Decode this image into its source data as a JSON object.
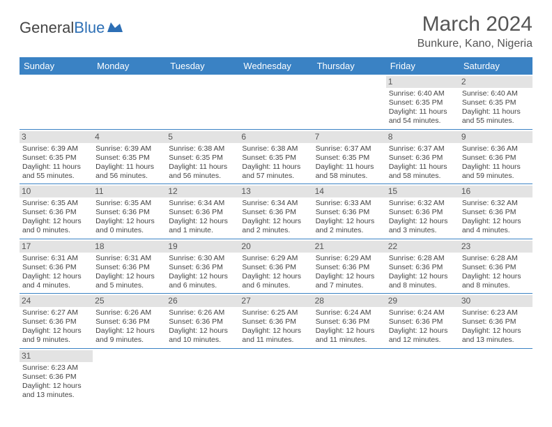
{
  "logo": {
    "text1": "General",
    "text2": "Blue"
  },
  "title": "March 2024",
  "subtitle": "Bunkure, Kano, Nigeria",
  "colors": {
    "header_bg": "#3a82c4",
    "daynum_bg": "#e3e3e3",
    "title_color": "#555555",
    "text_color": "#444444",
    "logo_blue": "#2d6fb5"
  },
  "dayNames": [
    "Sunday",
    "Monday",
    "Tuesday",
    "Wednesday",
    "Thursday",
    "Friday",
    "Saturday"
  ],
  "weeks": [
    [
      {
        "empty": true
      },
      {
        "empty": true
      },
      {
        "empty": true
      },
      {
        "empty": true
      },
      {
        "empty": true
      },
      {
        "day": "1",
        "sunrise": "Sunrise: 6:40 AM",
        "sunset": "Sunset: 6:35 PM",
        "daylight1": "Daylight: 11 hours",
        "daylight2": "and 54 minutes."
      },
      {
        "day": "2",
        "sunrise": "Sunrise: 6:40 AM",
        "sunset": "Sunset: 6:35 PM",
        "daylight1": "Daylight: 11 hours",
        "daylight2": "and 55 minutes."
      }
    ],
    [
      {
        "day": "3",
        "sunrise": "Sunrise: 6:39 AM",
        "sunset": "Sunset: 6:35 PM",
        "daylight1": "Daylight: 11 hours",
        "daylight2": "and 55 minutes."
      },
      {
        "day": "4",
        "sunrise": "Sunrise: 6:39 AM",
        "sunset": "Sunset: 6:35 PM",
        "daylight1": "Daylight: 11 hours",
        "daylight2": "and 56 minutes."
      },
      {
        "day": "5",
        "sunrise": "Sunrise: 6:38 AM",
        "sunset": "Sunset: 6:35 PM",
        "daylight1": "Daylight: 11 hours",
        "daylight2": "and 56 minutes."
      },
      {
        "day": "6",
        "sunrise": "Sunrise: 6:38 AM",
        "sunset": "Sunset: 6:35 PM",
        "daylight1": "Daylight: 11 hours",
        "daylight2": "and 57 minutes."
      },
      {
        "day": "7",
        "sunrise": "Sunrise: 6:37 AM",
        "sunset": "Sunset: 6:35 PM",
        "daylight1": "Daylight: 11 hours",
        "daylight2": "and 58 minutes."
      },
      {
        "day": "8",
        "sunrise": "Sunrise: 6:37 AM",
        "sunset": "Sunset: 6:36 PM",
        "daylight1": "Daylight: 11 hours",
        "daylight2": "and 58 minutes."
      },
      {
        "day": "9",
        "sunrise": "Sunrise: 6:36 AM",
        "sunset": "Sunset: 6:36 PM",
        "daylight1": "Daylight: 11 hours",
        "daylight2": "and 59 minutes."
      }
    ],
    [
      {
        "day": "10",
        "sunrise": "Sunrise: 6:35 AM",
        "sunset": "Sunset: 6:36 PM",
        "daylight1": "Daylight: 12 hours",
        "daylight2": "and 0 minutes."
      },
      {
        "day": "11",
        "sunrise": "Sunrise: 6:35 AM",
        "sunset": "Sunset: 6:36 PM",
        "daylight1": "Daylight: 12 hours",
        "daylight2": "and 0 minutes."
      },
      {
        "day": "12",
        "sunrise": "Sunrise: 6:34 AM",
        "sunset": "Sunset: 6:36 PM",
        "daylight1": "Daylight: 12 hours",
        "daylight2": "and 1 minute."
      },
      {
        "day": "13",
        "sunrise": "Sunrise: 6:34 AM",
        "sunset": "Sunset: 6:36 PM",
        "daylight1": "Daylight: 12 hours",
        "daylight2": "and 2 minutes."
      },
      {
        "day": "14",
        "sunrise": "Sunrise: 6:33 AM",
        "sunset": "Sunset: 6:36 PM",
        "daylight1": "Daylight: 12 hours",
        "daylight2": "and 2 minutes."
      },
      {
        "day": "15",
        "sunrise": "Sunrise: 6:32 AM",
        "sunset": "Sunset: 6:36 PM",
        "daylight1": "Daylight: 12 hours",
        "daylight2": "and 3 minutes."
      },
      {
        "day": "16",
        "sunrise": "Sunrise: 6:32 AM",
        "sunset": "Sunset: 6:36 PM",
        "daylight1": "Daylight: 12 hours",
        "daylight2": "and 4 minutes."
      }
    ],
    [
      {
        "day": "17",
        "sunrise": "Sunrise: 6:31 AM",
        "sunset": "Sunset: 6:36 PM",
        "daylight1": "Daylight: 12 hours",
        "daylight2": "and 4 minutes."
      },
      {
        "day": "18",
        "sunrise": "Sunrise: 6:31 AM",
        "sunset": "Sunset: 6:36 PM",
        "daylight1": "Daylight: 12 hours",
        "daylight2": "and 5 minutes."
      },
      {
        "day": "19",
        "sunrise": "Sunrise: 6:30 AM",
        "sunset": "Sunset: 6:36 PM",
        "daylight1": "Daylight: 12 hours",
        "daylight2": "and 6 minutes."
      },
      {
        "day": "20",
        "sunrise": "Sunrise: 6:29 AM",
        "sunset": "Sunset: 6:36 PM",
        "daylight1": "Daylight: 12 hours",
        "daylight2": "and 6 minutes."
      },
      {
        "day": "21",
        "sunrise": "Sunrise: 6:29 AM",
        "sunset": "Sunset: 6:36 PM",
        "daylight1": "Daylight: 12 hours",
        "daylight2": "and 7 minutes."
      },
      {
        "day": "22",
        "sunrise": "Sunrise: 6:28 AM",
        "sunset": "Sunset: 6:36 PM",
        "daylight1": "Daylight: 12 hours",
        "daylight2": "and 8 minutes."
      },
      {
        "day": "23",
        "sunrise": "Sunrise: 6:28 AM",
        "sunset": "Sunset: 6:36 PM",
        "daylight1": "Daylight: 12 hours",
        "daylight2": "and 8 minutes."
      }
    ],
    [
      {
        "day": "24",
        "sunrise": "Sunrise: 6:27 AM",
        "sunset": "Sunset: 6:36 PM",
        "daylight1": "Daylight: 12 hours",
        "daylight2": "and 9 minutes."
      },
      {
        "day": "25",
        "sunrise": "Sunrise: 6:26 AM",
        "sunset": "Sunset: 6:36 PM",
        "daylight1": "Daylight: 12 hours",
        "daylight2": "and 9 minutes."
      },
      {
        "day": "26",
        "sunrise": "Sunrise: 6:26 AM",
        "sunset": "Sunset: 6:36 PM",
        "daylight1": "Daylight: 12 hours",
        "daylight2": "and 10 minutes."
      },
      {
        "day": "27",
        "sunrise": "Sunrise: 6:25 AM",
        "sunset": "Sunset: 6:36 PM",
        "daylight1": "Daylight: 12 hours",
        "daylight2": "and 11 minutes."
      },
      {
        "day": "28",
        "sunrise": "Sunrise: 6:24 AM",
        "sunset": "Sunset: 6:36 PM",
        "daylight1": "Daylight: 12 hours",
        "daylight2": "and 11 minutes."
      },
      {
        "day": "29",
        "sunrise": "Sunrise: 6:24 AM",
        "sunset": "Sunset: 6:36 PM",
        "daylight1": "Daylight: 12 hours",
        "daylight2": "and 12 minutes."
      },
      {
        "day": "30",
        "sunrise": "Sunrise: 6:23 AM",
        "sunset": "Sunset: 6:36 PM",
        "daylight1": "Daylight: 12 hours",
        "daylight2": "and 13 minutes."
      }
    ],
    [
      {
        "day": "31",
        "sunrise": "Sunrise: 6:23 AM",
        "sunset": "Sunset: 6:36 PM",
        "daylight1": "Daylight: 12 hours",
        "daylight2": "and 13 minutes."
      },
      {
        "empty": true
      },
      {
        "empty": true
      },
      {
        "empty": true
      },
      {
        "empty": true
      },
      {
        "empty": true
      },
      {
        "empty": true
      }
    ]
  ]
}
